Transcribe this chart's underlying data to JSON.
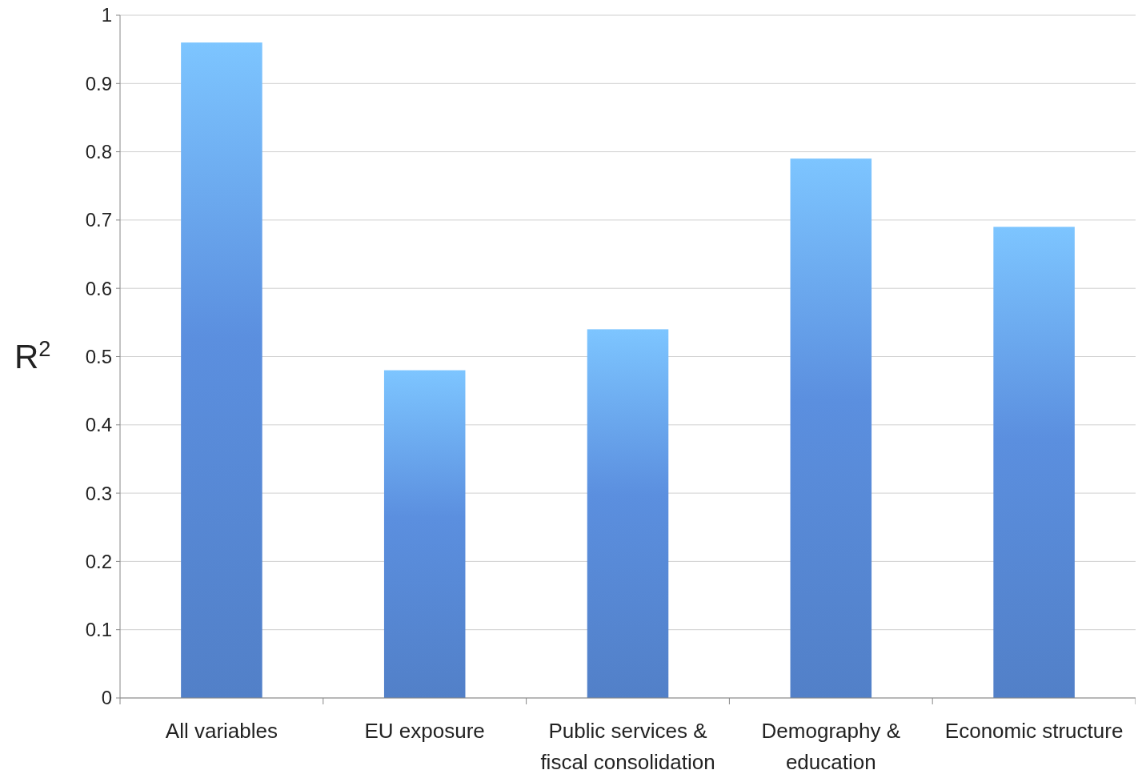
{
  "chart_data": {
    "type": "bar",
    "ylabel": "R$^{2}$",
    "categories": [
      "All variables",
      "EU exposure",
      "Public services & fiscal consolidation",
      "Demography & education",
      "Economic structure"
    ],
    "values": [
      0.96,
      0.48,
      0.54,
      0.79,
      0.69
    ],
    "color": "#5b8fdf",
    "ylim": [
      0,
      1
    ],
    "yticks": [
      0,
      0.1,
      0.2,
      0.3,
      0.4,
      0.5,
      0.6,
      0.7,
      0.8,
      0.9,
      1
    ],
    "grid": "y"
  }
}
